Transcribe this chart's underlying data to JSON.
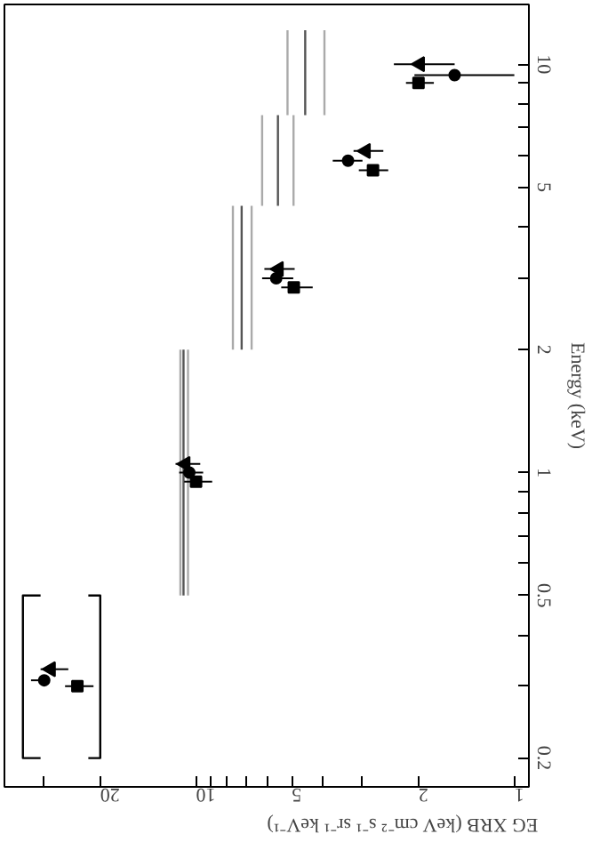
{
  "chart_data": {
    "type": "scatter",
    "xlabel": "EG XRB (keV cm⁻² s⁻¹ sr⁻¹ keV⁻¹)",
    "ylabel": "Energy (keV)",
    "log": "xy",
    "grid": false,
    "xlim": [
      40,
      0.9
    ],
    "ylim": [
      0.17,
      14
    ],
    "xticks": [
      1,
      2,
      {
        "value": 3,
        "label": null
      },
      {
        "value": 4,
        "label": null
      },
      5,
      {
        "value": 6,
        "label": null
      },
      {
        "value": 7,
        "label": null
      },
      {
        "value": 8,
        "label": null
      },
      {
        "value": 9,
        "label": null
      },
      10,
      20,
      {
        "value": 30,
        "label": null
      }
    ],
    "yticks": [
      0.2,
      {
        "value": 0.3,
        "label": null
      },
      {
        "value": 0.4,
        "label": null
      },
      0.5,
      {
        "value": 0.6,
        "label": null
      },
      {
        "value": 0.7,
        "label": null
      },
      {
        "value": 0.8,
        "label": null
      },
      {
        "value": 0.9,
        "label": null
      },
      1,
      2,
      {
        "value": 3,
        "label": null
      },
      {
        "value": 4,
        "label": null
      },
      5,
      {
        "value": 6,
        "label": null
      },
      {
        "value": 7,
        "label": null
      },
      {
        "value": 8,
        "label": null
      },
      {
        "value": 9,
        "label": null
      },
      10
    ],
    "series": [
      {
        "type": "line",
        "color": "#aaaaaa",
        "x": [
          11.2,
          11.2,
          null,
          10.6,
          10.6,
          null,
          7.66,
          7.66,
          null,
          6.69,
          6.69,
          null,
          6.2,
          6.2,
          null,
          4.94,
          4.94,
          null,
          5.16,
          5.16,
          null,
          3.95,
          3.95
        ],
        "values": [
          0.5,
          2,
          null,
          0.5,
          2,
          null,
          2,
          4.5,
          null,
          2,
          4.5,
          null,
          4.5,
          7.5,
          null,
          4.5,
          7.5,
          null,
          7.5,
          12.1,
          null,
          7.5,
          12.1
        ]
      },
      {
        "type": "line",
        "color": "#555555",
        "x": [
          10.95,
          10.95,
          null,
          7.19,
          7.19,
          null,
          5.53,
          5.53,
          null,
          4.54,
          4.54
        ],
        "values": [
          0.5,
          2,
          null,
          2,
          4.5,
          null,
          4.5,
          7.5,
          null,
          7.5,
          12.1
        ]
      },
      {
        "type": "line",
        "color": "#000000",
        "x": [
          21.8,
          20,
          20,
          21.8,
          null,
          30.8,
          35,
          35,
          30.8
        ],
        "values": [
          0.5,
          0.5,
          0.2,
          0.2,
          null,
          0.5,
          0.5,
          0.2,
          0.2
        ]
      },
      {
        "color": "#000000",
        "marker": "triangle",
        "x": [
          28.6,
          10.8,
          5.5,
          2.93,
          1.98
        ],
        "values": [
          0.33,
          1.05,
          3.15,
          6.13,
          10
        ],
        "xerrors": [
          [
            25.2,
            30.8
          ],
          [
            9.7,
            11.6
          ],
          [
            4.9,
            6.1
          ],
          [
            2.58,
            3.2
          ],
          [
            1.54,
            2.39
          ]
        ]
      },
      {
        "color": "#000000",
        "marker": "circle",
        "x": [
          30.0,
          10.5,
          5.6,
          3.33,
          1.54
        ],
        "values": [
          0.31,
          1.0,
          2.99,
          5.8,
          9.4
        ],
        "xerrors": [
          [
            28.9,
            33
          ],
          [
            9.5,
            11.3
          ],
          [
            4.95,
            6.2
          ],
          [
            3.0,
            3.72
          ],
          [
            1.0,
            2.06
          ]
        ]
      },
      {
        "color": "#000000",
        "marker": "square",
        "x": [
          23.6,
          10.0,
          4.93,
          2.78,
          2.0
        ],
        "values": [
          0.3,
          0.95,
          2.84,
          5.5,
          9.0
        ],
        "xerrors": [
          [
            21,
            25.8
          ],
          [
            8.9,
            10.9
          ],
          [
            4.3,
            5.4
          ],
          [
            2.49,
            3.08
          ],
          [
            1.79,
            2.19
          ]
        ]
      }
    ]
  }
}
